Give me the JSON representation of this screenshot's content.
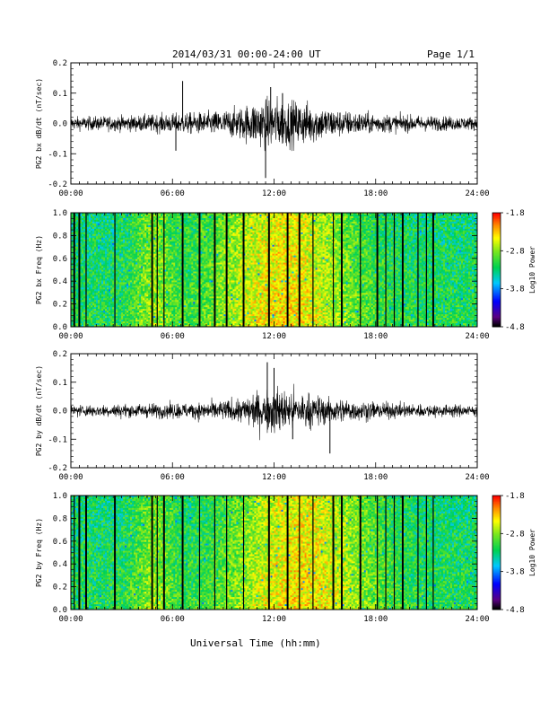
{
  "header": {
    "title": "2014/03/31   00:00-24:00 UT",
    "page": "Page 1/1"
  },
  "xlabel": "Universal Time (hh:mm)",
  "time_ticks": [
    "00:00",
    "06:00",
    "12:00",
    "18:00",
    "24:00"
  ],
  "colorbar": {
    "label": "Log10 Power",
    "ticks": [
      "-1.8",
      "-2.8",
      "-3.8",
      "-4.8"
    ],
    "range": [
      -4.8,
      -1.8
    ]
  },
  "chart_data": [
    {
      "type": "line",
      "ylabel": "PG2 bx dB/dt (nT/sec)",
      "ylim": [
        -0.2,
        0.2
      ],
      "yticks": [
        "0.2",
        "0.1",
        "0.0",
        "-0.1",
        "-0.2"
      ],
      "xlim": [
        0,
        24
      ],
      "x_unit": "hours UT",
      "envelope": [
        {
          "x": 0,
          "amp": 0.02
        },
        {
          "x": 2,
          "amp": 0.022
        },
        {
          "x": 4,
          "amp": 0.025
        },
        {
          "x": 6,
          "amp": 0.03
        },
        {
          "x": 8,
          "amp": 0.035
        },
        {
          "x": 9,
          "amp": 0.04
        },
        {
          "x": 10,
          "amp": 0.05
        },
        {
          "x": 11,
          "amp": 0.07
        },
        {
          "x": 12,
          "amp": 0.08
        },
        {
          "x": 13,
          "amp": 0.07
        },
        {
          "x": 14,
          "amp": 0.065
        },
        {
          "x": 15,
          "amp": 0.05
        },
        {
          "x": 16,
          "amp": 0.04
        },
        {
          "x": 18,
          "amp": 0.03
        },
        {
          "x": 20,
          "amp": 0.025
        },
        {
          "x": 22,
          "amp": 0.022
        },
        {
          "x": 24,
          "amp": 0.02
        }
      ],
      "spikes": [
        {
          "x": 6.6,
          "y": 0.14
        },
        {
          "x": 11.5,
          "y": -0.18
        },
        {
          "x": 11.8,
          "y": 0.12
        },
        {
          "x": 12.5,
          "y": 0.1
        },
        {
          "x": 6.2,
          "y": -0.09
        }
      ]
    },
    {
      "type": "heatmap",
      "ylabel": "PG2 bx Freq (Hz)",
      "ylim": [
        0.0,
        1.0
      ],
      "yticks": [
        "1.0",
        "0.8",
        "0.6",
        "0.4",
        "0.2",
        "0.0"
      ],
      "xlim": [
        0,
        24
      ],
      "peak_hour": 12.5,
      "gaps_hours": [
        0.2,
        0.5,
        0.9,
        2.6,
        4.8,
        5.1,
        5.5,
        6.6,
        7.6,
        8.5,
        9.2,
        10.2,
        11.7,
        12.8,
        13.5,
        14.3,
        15.5,
        16.0,
        17.1,
        18.1,
        18.6,
        19.1,
        19.6,
        20.5,
        21.0,
        21.4
      ]
    },
    {
      "type": "line",
      "ylabel": "PG2 by dB/dt (nT/sec)",
      "ylim": [
        -0.2,
        0.2
      ],
      "yticks": [
        "0.2",
        "0.1",
        "0.0",
        "-0.1",
        "-0.2"
      ],
      "xlim": [
        0,
        24
      ],
      "x_unit": "hours UT",
      "envelope": [
        {
          "x": 0,
          "amp": 0.018
        },
        {
          "x": 2,
          "amp": 0.02
        },
        {
          "x": 4,
          "amp": 0.022
        },
        {
          "x": 6,
          "amp": 0.025
        },
        {
          "x": 8,
          "amp": 0.028
        },
        {
          "x": 9,
          "amp": 0.032
        },
        {
          "x": 10,
          "amp": 0.04
        },
        {
          "x": 11,
          "amp": 0.06
        },
        {
          "x": 12,
          "amp": 0.075
        },
        {
          "x": 13,
          "amp": 0.065
        },
        {
          "x": 14,
          "amp": 0.055
        },
        {
          "x": 15,
          "amp": 0.045
        },
        {
          "x": 16,
          "amp": 0.038
        },
        {
          "x": 18,
          "amp": 0.028
        },
        {
          "x": 20,
          "amp": 0.022
        },
        {
          "x": 22,
          "amp": 0.02
        },
        {
          "x": 24,
          "amp": 0.018
        }
      ],
      "spikes": [
        {
          "x": 11.6,
          "y": 0.17
        },
        {
          "x": 12.0,
          "y": 0.15
        },
        {
          "x": 15.3,
          "y": -0.15
        },
        {
          "x": 13.1,
          "y": -0.1
        }
      ]
    },
    {
      "type": "heatmap",
      "ylabel": "PG2 by Freq (Hz)",
      "ylim": [
        0.0,
        1.0
      ],
      "yticks": [
        "1.0",
        "0.8",
        "0.6",
        "0.4",
        "0.2",
        "0.0"
      ],
      "xlim": [
        0,
        24
      ],
      "peak_hour": 13.5,
      "gaps_hours": [
        0.2,
        0.5,
        0.9,
        2.6,
        4.8,
        5.1,
        5.5,
        6.6,
        7.6,
        8.5,
        9.2,
        10.2,
        11.7,
        12.8,
        13.5,
        14.3,
        15.5,
        16.0,
        17.1,
        18.1,
        18.6,
        19.1,
        19.6,
        20.5,
        21.0,
        21.4
      ]
    }
  ]
}
